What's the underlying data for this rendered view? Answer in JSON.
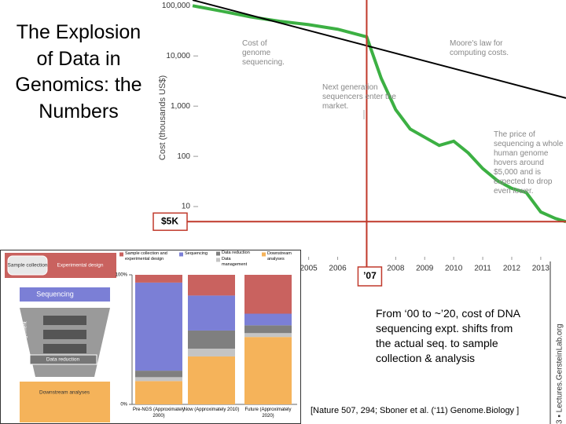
{
  "slide": {
    "title": "The Explosion of Data in Genomics: the Numbers",
    "note": "From ‘00 to ~’20, cost of DNA sequencing expt. shifts from the actual seq. to sample collection & analysis",
    "citation": "[Nature 507, 294; Sboner et al. (‘11) Genome.Biology ]",
    "footer": "3 ▪ Lectures.GersteinLab.org"
  },
  "chart_data": [
    {
      "type": "line",
      "ylabel": "Cost (thousands US$)",
      "log_y": true,
      "xlim": [
        2001,
        2013.87
      ],
      "ylim": [
        1,
        130000
      ],
      "xticks": [
        2005,
        2006,
        2008,
        2009,
        2010,
        2011,
        2012,
        2013
      ],
      "yticks": [
        {
          "value": 100000,
          "label": "100,000"
        },
        {
          "value": 10000,
          "label": "10,000"
        },
        {
          "value": 1000,
          "label": "1,000"
        },
        100,
        10
      ],
      "series": [
        {
          "name": "Cost of genome sequencing.",
          "color": "#3cb043",
          "x": [
            2001,
            2002,
            2003,
            2004,
            2005,
            2006,
            2007,
            2007.5,
            2008,
            2008.5,
            2009,
            2009.5,
            2010,
            2010.5,
            2011,
            2011.5,
            2012,
            2012.5,
            2013,
            2013.5,
            2013.87
          ],
          "values": [
            100000,
            78000,
            60000,
            49000,
            42000,
            34000,
            24000,
            3600,
            850,
            350,
            240,
            165,
            200,
            117,
            57,
            33,
            23,
            19,
            7.8,
            5.8,
            5
          ]
        },
        {
          "name": "Moore's law for computing costs.",
          "color": "#000000",
          "x": [
            2001,
            2013.87
          ],
          "values": [
            130000,
            1450
          ]
        }
      ],
      "annotations": [
        "Next generation sequencers enter the market.",
        "The price of sequencing a whole human genome hovers around $5,000 and is expected to drop even lower."
      ],
      "reference_lines": [
        {
          "axis": "y",
          "value": 5,
          "label": "$5K",
          "color": "#c0392b"
        },
        {
          "axis": "x",
          "value": 2007,
          "label": "’07",
          "color": "#c0392b"
        }
      ]
    },
    {
      "type": "stacked_bar",
      "categories": [
        "Pre-NGS (Approximately 2000)",
        "Now (Approximately 2010)",
        "Future (Approximately 2020)"
      ],
      "ylim": [
        0,
        100
      ],
      "yticks": [
        {
          "value": 0,
          "label": "0%"
        },
        {
          "value": 100,
          "label": "100%"
        }
      ],
      "series": [
        {
          "name": "Downstream analyses",
          "color": "#f5b35a",
          "values": [
            18,
            37,
            52
          ]
        },
        {
          "name": "Data management",
          "color": "#c4c4c4",
          "values": [
            3,
            6,
            3
          ]
        },
        {
          "name": "Data reduction",
          "color": "#7f7f7f",
          "values": [
            5,
            14,
            6
          ]
        },
        {
          "name": "Sequencing",
          "color": "#7b7fd6",
          "values": [
            68,
            27,
            9
          ]
        },
        {
          "name": "Sample collection and experimental design",
          "color": "#c9625f",
          "values": [
            6,
            16,
            30
          ]
        }
      ]
    }
  ],
  "flowchart": {
    "nodes": [
      "Sample collection",
      "Experimental design",
      "Sequencing",
      "Data management",
      "Data reduction",
      "Downstream analyses"
    ]
  }
}
